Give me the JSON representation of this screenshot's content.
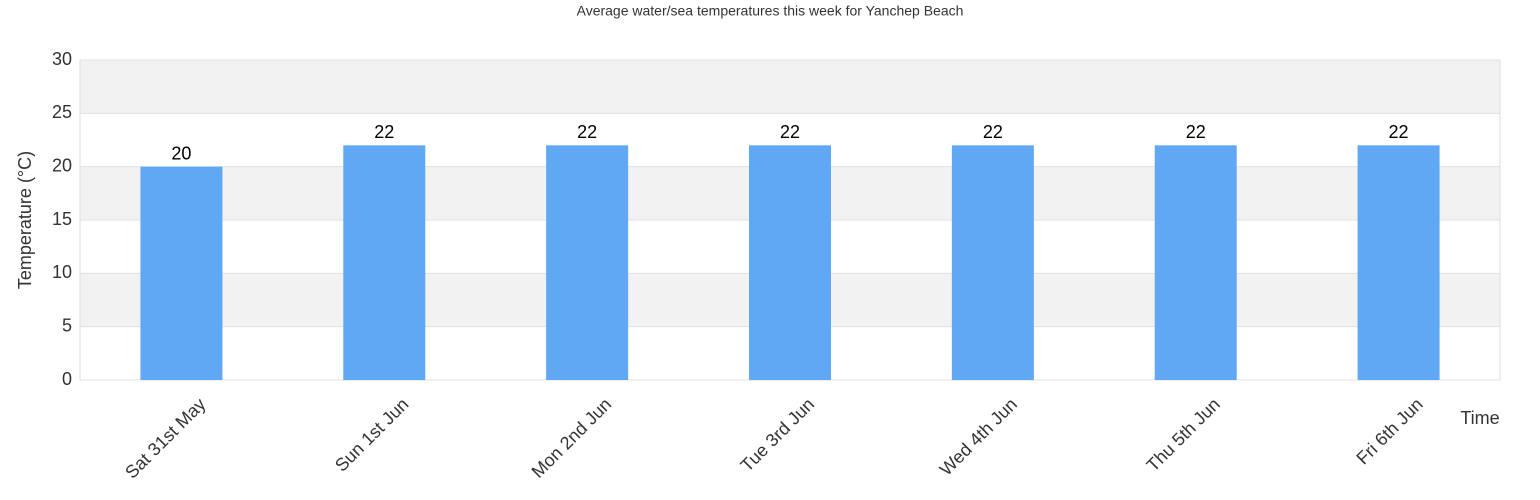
{
  "chart_data": {
    "type": "bar",
    "title": "Average water/sea temperatures this week for Yanchep Beach",
    "x_label": "Time",
    "y_label": "Temperature (°C)",
    "categories": [
      "Sat 31st May",
      "Sun 1st Jun",
      "Mon 2nd Jun",
      "Tue 3rd Jun",
      "Wed 4th Jun",
      "Thu 5th Jun",
      "Fri 6th Jun"
    ],
    "values": [
      20,
      22,
      22,
      22,
      22,
      22,
      22
    ],
    "color": "#60a8f4",
    "ylim": [
      0,
      30
    ],
    "yticks": [
      0,
      5,
      10,
      15,
      20,
      25,
      30
    ],
    "grid": true
  }
}
